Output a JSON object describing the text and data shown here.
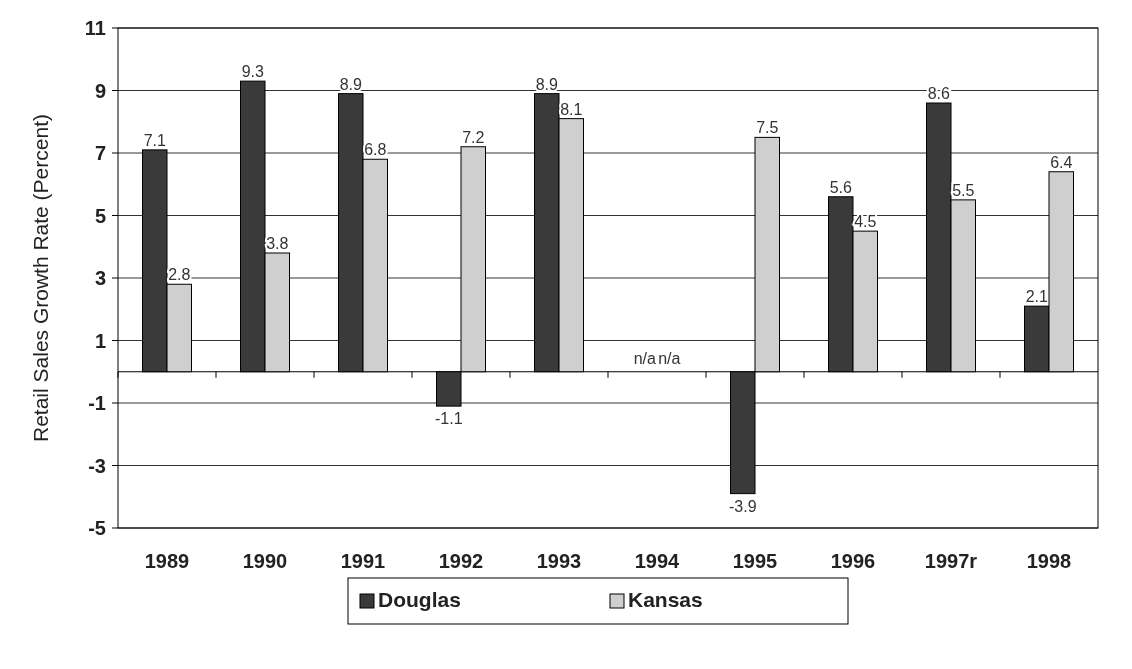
{
  "chart_data": {
    "type": "bar",
    "ylabel": "Retail Sales Growth Rate (Percent)",
    "categories": [
      "1989",
      "1990",
      "1991",
      "1992",
      "1993",
      "1994",
      "1995",
      "1996",
      "1997r",
      "1998"
    ],
    "series": [
      {
        "name": "Douglas",
        "color": "#3a3a3a",
        "values": [
          7.1,
          9.3,
          8.9,
          -1.1,
          8.9,
          null,
          -3.9,
          5.6,
          8.6,
          2.1
        ],
        "value_labels": [
          "7.1",
          "9.3",
          "8.9",
          "-1.1",
          "8.9",
          "n/a",
          "-3.9",
          "5.6",
          "8.6",
          "2.1"
        ]
      },
      {
        "name": "Kansas",
        "color": "#cfcfcf",
        "values": [
          2.8,
          3.8,
          6.8,
          7.2,
          8.1,
          null,
          7.5,
          4.5,
          5.5,
          6.4
        ],
        "value_labels": [
          "2.8",
          "3.8",
          "6.8",
          "7.2",
          "8.1",
          "n/a",
          "7.5",
          "4.5",
          "5.5",
          "6.4"
        ]
      }
    ],
    "ylim": [
      -5,
      11
    ],
    "yticks": [
      -5,
      -3,
      -1,
      1,
      3,
      5,
      7,
      9,
      11
    ],
    "grid": "y",
    "legend": "bottom"
  }
}
